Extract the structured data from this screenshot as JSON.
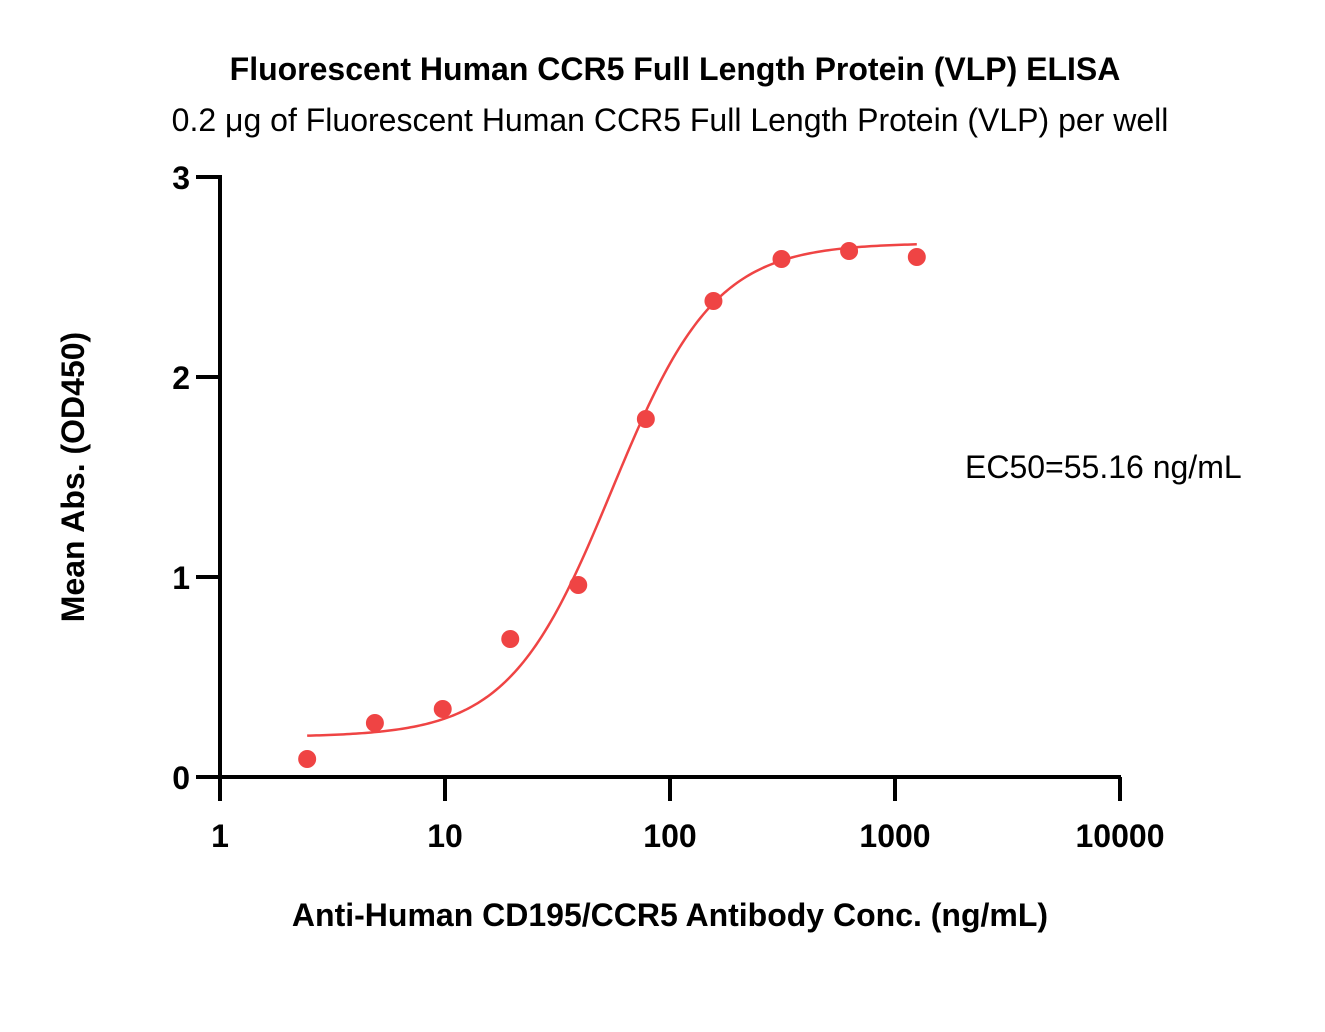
{
  "chart_data": {
    "type": "scatter",
    "title": "Fluorescent Human CCR5 Full Length Protein (VLP) ELISA",
    "subtitle": "0.2 μg of Fluorescent Human CCR5 Full Length Protein (VLP) per well",
    "xlabel": "Anti-Human CD195/CCR5  Antibody Conc. (ng/mL)",
    "ylabel": "Mean Abs. (OD450)",
    "x_scale": "log",
    "xlim": [
      1,
      10000
    ],
    "ylim": [
      0,
      3
    ],
    "x_ticks": [
      1,
      10,
      100,
      1000,
      10000
    ],
    "x_tick_labels": [
      "1",
      "10",
      "100",
      "1000",
      "10000"
    ],
    "y_ticks": [
      0,
      1,
      2,
      3
    ],
    "y_tick_labels": [
      "0",
      "1",
      "2",
      "3"
    ],
    "grid": false,
    "colors": {
      "series": "#ef4444",
      "axis": "#000000"
    },
    "series": [
      {
        "points": [
          {
            "x": 2.44,
            "y": 0.09
          },
          {
            "x": 4.88,
            "y": 0.27
          },
          {
            "x": 9.77,
            "y": 0.34
          },
          {
            "x": 19.5,
            "y": 0.69
          },
          {
            "x": 39.1,
            "y": 0.96
          },
          {
            "x": 78.1,
            "y": 1.79
          },
          {
            "x": 156,
            "y": 2.38
          },
          {
            "x": 313,
            "y": 2.59
          },
          {
            "x": 625,
            "y": 2.63
          },
          {
            "x": 1250,
            "y": 2.6
          }
        ],
        "fit": {
          "model": "4PL",
          "bottom": 0.2,
          "top": 2.67,
          "ec50": 55.16,
          "hill": 1.9,
          "x_range": [
            2.44,
            1250
          ]
        }
      }
    ],
    "annotations": [
      {
        "text": "EC50=55.16 ng/mL"
      }
    ]
  }
}
